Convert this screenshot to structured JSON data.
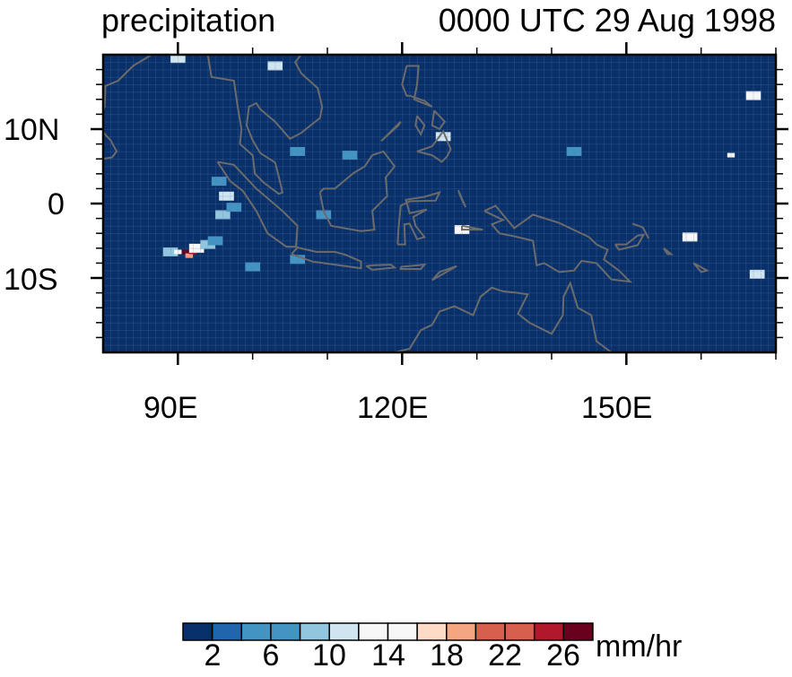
{
  "header": {
    "left_title": "precipitation",
    "right_title": "0000 UTC 29 Aug 1998"
  },
  "axes": {
    "x_tick_labels": [
      "90E",
      "120E",
      "150E"
    ],
    "y_tick_labels": [
      "10N",
      "0",
      "10S"
    ]
  },
  "colorbar": {
    "units": "mm/hr",
    "labels": [
      "2",
      "6",
      "10",
      "14",
      "18",
      "22",
      "26"
    ],
    "colors": [
      "#08306b",
      "#2166ac",
      "#4393c3",
      "#4393c3",
      "#92c5de",
      "#d1e5f0",
      "#f7f7f7",
      "#f7f7f7",
      "#fddbc7",
      "#f4a582",
      "#d6604d",
      "#d6604d",
      "#b2182b",
      "#67001f"
    ]
  },
  "chart_data": {
    "type": "heatmap",
    "title": "precipitation",
    "subtitle": "0000 UTC 29 Aug 1998",
    "lon_range": [
      80,
      170
    ],
    "lat_range": [
      -20,
      20
    ],
    "levels": [
      0,
      2,
      4,
      6,
      8,
      10,
      12,
      14,
      16,
      18,
      20,
      22,
      24,
      26,
      28
    ],
    "background_value": 0,
    "cells": [
      {
        "lon": 89,
        "lat": -6.5,
        "value": 8
      },
      {
        "lon": 90,
        "lat": -6.5,
        "value": 14
      },
      {
        "lon": 91,
        "lat": -6.5,
        "value": 26
      },
      {
        "lon": 91.5,
        "lat": -7,
        "value": 18
      },
      {
        "lon": 92,
        "lat": -6.5,
        "value": 24
      },
      {
        "lon": 92.5,
        "lat": -6,
        "value": 12
      },
      {
        "lon": 93,
        "lat": -6,
        "value": 14
      },
      {
        "lon": 94,
        "lat": -5.5,
        "value": 8
      },
      {
        "lon": 95,
        "lat": -5,
        "value": 6
      },
      {
        "lon": 96,
        "lat": -1.5,
        "value": 8
      },
      {
        "lon": 96.5,
        "lat": 1,
        "value": 10
      },
      {
        "lon": 95.5,
        "lat": 3,
        "value": 6
      },
      {
        "lon": 97.5,
        "lat": -0.5,
        "value": 6
      },
      {
        "lon": 158.5,
        "lat": -4.5,
        "value": 12
      },
      {
        "lon": 167.5,
        "lat": -9.5,
        "value": 10
      },
      {
        "lon": 128,
        "lat": -3.5,
        "value": 12
      },
      {
        "lon": 125.5,
        "lat": 9,
        "value": 10
      },
      {
        "lon": 143,
        "lat": 7,
        "value": 6
      },
      {
        "lon": 164,
        "lat": 6.5,
        "value": 14
      },
      {
        "lon": 167,
        "lat": 14.5,
        "value": 12
      },
      {
        "lon": 100,
        "lat": -8.5,
        "value": 6
      },
      {
        "lon": 106,
        "lat": -7.5,
        "value": 6
      },
      {
        "lon": 109.5,
        "lat": -1.5,
        "value": 6
      },
      {
        "lon": 113,
        "lat": 6.5,
        "value": 6
      },
      {
        "lon": 106,
        "lat": 7,
        "value": 6
      },
      {
        "lon": 103,
        "lat": 18.5,
        "value": 10
      },
      {
        "lon": 90,
        "lat": 19.5,
        "value": 10
      }
    ]
  }
}
